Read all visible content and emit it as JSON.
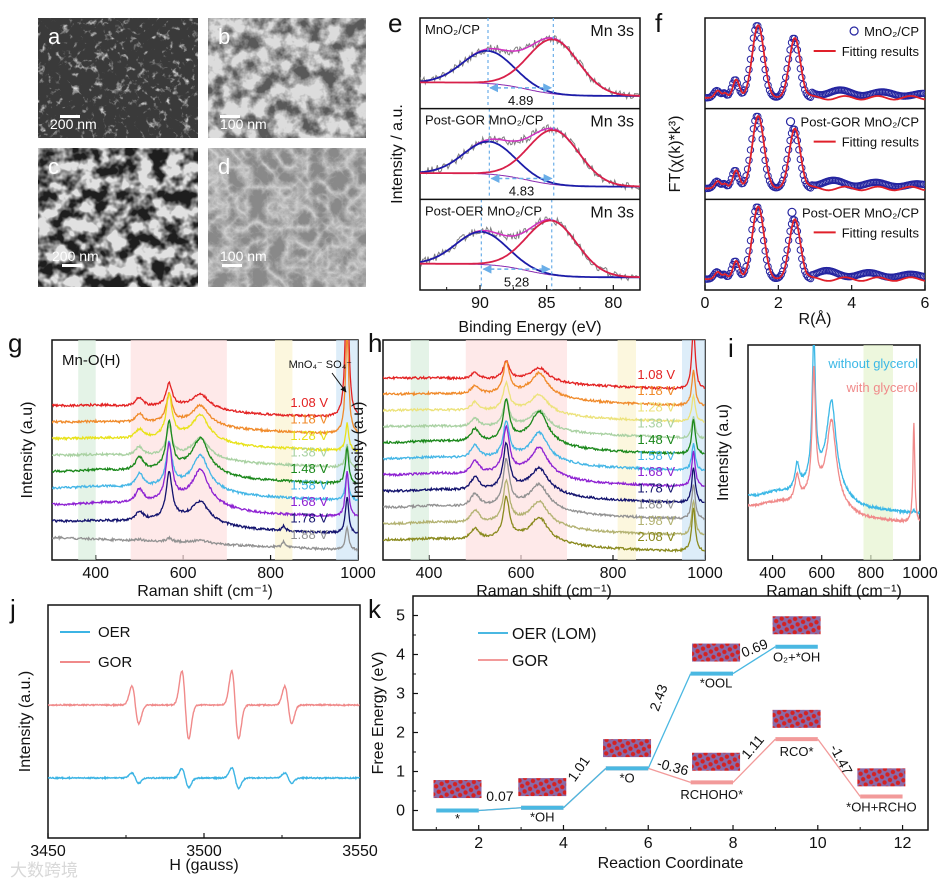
{
  "image_panels": [
    {
      "letter": "a",
      "scale_bar": "200 nm"
    },
    {
      "letter": "b",
      "scale_bar": "100 nm"
    },
    {
      "letter": "c",
      "scale_bar": "200 nm"
    },
    {
      "letter": "d",
      "scale_bar": "100 nm"
    }
  ],
  "panel_letters": {
    "e": "e",
    "f": "f",
    "g": "g",
    "h": "h",
    "i": "i",
    "j": "j",
    "k": "k"
  },
  "watermark": "大数跨境",
  "chart_data": [
    {
      "panel": "e",
      "type": "line",
      "xlabel": "Binding Energy (eV)",
      "ylabel": "Intensity / a.u.",
      "xlim": [
        94.5,
        78
      ],
      "xticks": [
        90,
        85,
        80
      ],
      "subplots": [
        {
          "sample": "MnO₂/CP",
          "region": "Mn 3s",
          "peak1_eV": 89.4,
          "peak2_eV": 84.5,
          "splitting": "4.89"
        },
        {
          "sample": "Post-GOR MnO₂/CP",
          "region": "Mn 3s",
          "peak1_eV": 89.3,
          "peak2_eV": 84.47,
          "splitting": "4.83"
        },
        {
          "sample": "Post-OER MnO₂/CP",
          "region": "Mn 3s",
          "peak1_eV": 89.9,
          "peak2_eV": 84.62,
          "splitting": "5.28"
        }
      ],
      "colors": {
        "data": "#808080",
        "peak1": "#1c1ca8",
        "peak2": "#d8204a",
        "envelope": "#d030c0",
        "marker": "#6aaee8"
      }
    },
    {
      "panel": "f",
      "type": "line",
      "xlabel": "R(Å)",
      "ylabel": "FT(χ(k)*k³)",
      "xlim": [
        0,
        6
      ],
      "xticks": [
        0,
        2,
        4,
        6
      ],
      "peaks_R": [
        0.35,
        0.85,
        1.45,
        2.45
      ],
      "subplots": [
        {
          "data_label": "MnO₂/CP",
          "fit_label": "Fitting results"
        },
        {
          "data_label": "Post-GOR MnO₂/CP",
          "fit_label": "Fitting results"
        },
        {
          "data_label": "Post-OER MnO₂/CP",
          "fit_label": "Fitting results"
        }
      ],
      "colors": {
        "data": "#2424a0",
        "fit": "#e0202a"
      }
    },
    {
      "panel": "g",
      "type": "line",
      "xlabel": "Raman shift (cm⁻¹)",
      "ylabel": "Intensity (a.u)",
      "xlim": [
        300,
        1000
      ],
      "xticks": [
        400,
        600,
        800,
        1000
      ],
      "annotations": [
        "Mn-O(H)",
        "MnO₄⁻ SO₄⁻"
      ],
      "bands_cm1": [
        {
          "range": [
            360,
            400
          ],
          "color": "#d8eedd"
        },
        {
          "range": [
            480,
            700
          ],
          "color": "#fde0e0"
        },
        {
          "range": [
            810,
            850
          ],
          "color": "#fbf4d0"
        },
        {
          "range": [
            950,
            1000
          ],
          "color": "#cfe6f6"
        }
      ],
      "peak_positions_cm1": [
        500,
        568,
        640,
        975,
        830
      ],
      "spectra": [
        {
          "potential": "1.08 V",
          "color": "#e32222",
          "intensities": [
            2,
            5,
            3,
            34,
            0
          ]
        },
        {
          "potential": "1.18 V",
          "color": "#f08a2a",
          "intensities": [
            2,
            6,
            4,
            22,
            0
          ]
        },
        {
          "potential": "1.28 V",
          "color": "#e8e21a",
          "intensities": [
            2,
            9,
            5,
            6,
            0
          ]
        },
        {
          "potential": "1.38 V",
          "color": "#a9d1a2",
          "intensities": [
            2,
            6,
            4,
            5,
            0
          ]
        },
        {
          "potential": "1.48 V",
          "color": "#1b881b",
          "intensities": [
            3,
            10,
            7,
            8,
            0
          ]
        },
        {
          "potential": "1.58 V",
          "color": "#44b6e6",
          "intensities": [
            3,
            9,
            7,
            6,
            0
          ]
        },
        {
          "potential": "1.68 V",
          "color": "#8e22d2",
          "intensities": [
            3,
            12,
            7,
            10,
            0
          ]
        },
        {
          "potential": "1.78 V",
          "color": "#13136e",
          "intensities": [
            2,
            10,
            4,
            8,
            1
          ]
        },
        {
          "potential": "1.88 V",
          "color": "#929292",
          "intensities": [
            0.3,
            0.8,
            0.6,
            5,
            1.3
          ]
        }
      ]
    },
    {
      "panel": "h",
      "type": "line",
      "xlabel": "Raman shift (cm⁻¹)",
      "ylabel": "Intensity (a.u)",
      "xlim": [
        300,
        1000
      ],
      "xticks": [
        400,
        600,
        800,
        1000
      ],
      "bands_cm1": [
        {
          "range": [
            360,
            400
          ],
          "color": "#d8eedd"
        },
        {
          "range": [
            480,
            700
          ],
          "color": "#fde0e0"
        },
        {
          "range": [
            810,
            850
          ],
          "color": "#fbf4d0"
        },
        {
          "range": [
            950,
            1000
          ],
          "color": "#cfe6f6"
        }
      ],
      "peak_positions_cm1": [
        500,
        568,
        640,
        975,
        830
      ],
      "spectra": [
        {
          "potential": "1.08 V",
          "color": "#e32222",
          "intensities": [
            1.5,
            4,
            3,
            14,
            0
          ]
        },
        {
          "potential": "1.18 V",
          "color": "#f08a2a",
          "intensities": [
            2,
            7,
            5,
            8,
            0
          ]
        },
        {
          "potential": "1.28 V",
          "color": "#ece27a",
          "intensities": [
            2,
            6,
            4,
            6,
            0
          ]
        },
        {
          "potential": "1.38 V",
          "color": "#a9d1a2",
          "intensities": [
            2,
            6,
            4,
            5,
            0
          ]
        },
        {
          "potential": "1.48 V",
          "color": "#1b881b",
          "intensities": [
            3,
            9,
            7,
            8,
            0
          ]
        },
        {
          "potential": "1.58 V",
          "color": "#44b6e6",
          "intensities": [
            3,
            8,
            6,
            6,
            0
          ]
        },
        {
          "potential": "1.68 V",
          "color": "#8e22d2",
          "intensities": [
            3,
            10,
            6,
            8,
            0
          ]
        },
        {
          "potential": "1.78 V",
          "color": "#13136e",
          "intensities": [
            3,
            10,
            5,
            8,
            0
          ]
        },
        {
          "potential": "1.88 V",
          "color": "#929292",
          "intensities": [
            3,
            10,
            5,
            8,
            0
          ]
        },
        {
          "potential": "1.98 V",
          "color": "#b3b272",
          "intensities": [
            3,
            9,
            5,
            8,
            0
          ]
        },
        {
          "potential": "2.08 V",
          "color": "#8a8a1e",
          "intensities": [
            2.5,
            9,
            5,
            10,
            0
          ]
        }
      ]
    },
    {
      "panel": "i",
      "type": "line",
      "xlabel": "Raman shift (cm⁻¹)",
      "ylabel": "Intensity (a.u)",
      "xlim": [
        300,
        1000
      ],
      "xticks": [
        400,
        600,
        800,
        1000
      ],
      "bands_cm1": [
        {
          "range": [
            770,
            890
          ],
          "color": "#e6f3cf"
        }
      ],
      "peak_positions_cm1": [
        500,
        568,
        640,
        975,
        830
      ],
      "spectra": [
        {
          "potential": "without glycerol",
          "color": "#3cb8e6",
          "intensities": [
            4,
            22,
            13,
            0.5,
            0
          ]
        },
        {
          "potential": "with glycerol",
          "color": "#f08a8a",
          "intensities": [
            4,
            19,
            12,
            16,
            0
          ]
        }
      ]
    },
    {
      "panel": "j",
      "type": "line",
      "xlabel": "H (gauss)",
      "ylabel": "Intensity (a.u.)",
      "xlim": [
        3450,
        3550
      ],
      "xticks": [
        3450,
        3500,
        3550
      ],
      "line_positions_gauss": [
        3478,
        3494,
        3510,
        3527
      ],
      "series": [
        {
          "name": "OER",
          "color": "#3cb4e4",
          "amplitudes": [
            0.15,
            0.28,
            0.3,
            0.15
          ]
        },
        {
          "name": "GOR",
          "color": "#f08a8a",
          "amplitudes": [
            0.55,
            1.0,
            1.0,
            0.55
          ]
        }
      ]
    },
    {
      "panel": "k",
      "type": "line",
      "xlabel": "Reaction Coordinate",
      "ylabel": "Free Energy (eV)",
      "xlim": [
        0.45,
        12.6
      ],
      "ylim": [
        -0.5,
        5.5
      ],
      "xticks": [
        2,
        4,
        6,
        8,
        10,
        12
      ],
      "yticks": [
        0,
        1,
        2,
        3,
        4,
        5
      ],
      "series": [
        {
          "name": "OER (LOM)",
          "color": "#4ab8e2",
          "levels": [
            {
              "x": [
                1,
                2
              ],
              "G": 0,
              "state": "*"
            },
            {
              "x": [
                3,
                4
              ],
              "G": 0.07,
              "state": "*OH"
            },
            {
              "x": [
                5,
                6
              ],
              "G": 1.08,
              "state": "*O"
            },
            {
              "x": [
                7,
                8
              ],
              "G": 3.51,
              "state": "*OOL"
            },
            {
              "x": [
                9,
                10
              ],
              "G": 4.2,
              "state": "O₂+*OH"
            }
          ]
        },
        {
          "name": "GOR",
          "color": "#f29a9a",
          "levels": [
            {
              "x": [
                1,
                2
              ],
              "G": 0,
              "state": ""
            },
            {
              "x": [
                3,
                4
              ],
              "G": 0.07,
              "state": ""
            },
            {
              "x": [
                5,
                6
              ],
              "G": 1.08,
              "state": ""
            },
            {
              "x": [
                7,
                8
              ],
              "G": 0.72,
              "state": "RCHOHO*"
            },
            {
              "x": [
                9,
                10
              ],
              "G": 1.83,
              "state": "RCO*"
            },
            {
              "x": [
                11,
                12
              ],
              "G": 0.36,
              "state": "*OH+RCHO"
            }
          ]
        }
      ],
      "step_energies": [
        "0.07",
        "1.01",
        "2.43",
        "0.69",
        "-0.36",
        "1.11",
        "-1.47"
      ]
    }
  ]
}
